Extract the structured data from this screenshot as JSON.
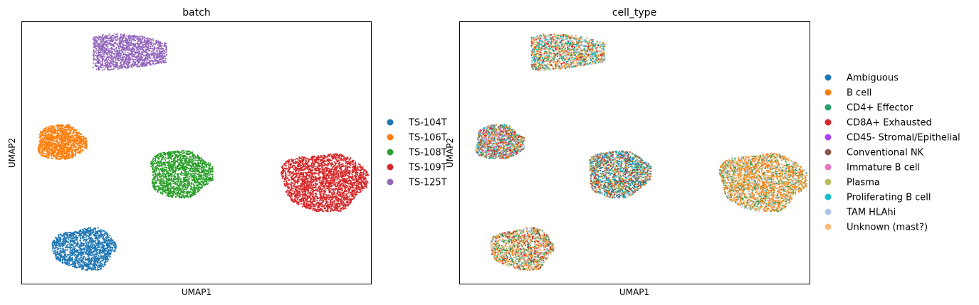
{
  "chart_data": [
    {
      "type": "scatter",
      "title": "batch",
      "xlabel": "UMAP1",
      "ylabel": "UMAP2",
      "xlim": [
        0,
        10
      ],
      "ylim": [
        0,
        10
      ],
      "grid": false,
      "ticks": "hidden",
      "legend_placement": "right",
      "legend": [
        {
          "label": "TS-104T",
          "color": "#1f77b4"
        },
        {
          "label": "TS-106T",
          "color": "#ff7f0e"
        },
        {
          "label": "TS-108T",
          "color": "#2ca02c"
        },
        {
          "label": "TS-109T",
          "color": "#d62728"
        },
        {
          "label": "TS-125T",
          "color": "#9467bd"
        }
      ],
      "clusters": [
        {
          "name": "TS-125T",
          "center": [
            3.1,
            8.8
          ],
          "rx": 1.05,
          "ry": 0.72,
          "shape": "wedge",
          "points": 1500,
          "colors": [
            "#9467bd"
          ]
        },
        {
          "name": "TS-106T",
          "center": [
            1.15,
            5.4
          ],
          "rx": 0.72,
          "ry": 0.68,
          "shape": "round",
          "points": 1300,
          "colors": [
            "#ff7f0e"
          ]
        },
        {
          "name": "TS-108T",
          "center": [
            4.55,
            4.2
          ],
          "rx": 0.92,
          "ry": 0.92,
          "shape": "round",
          "points": 1700,
          "colors": [
            "#2ca02c"
          ]
        },
        {
          "name": "TS-109T",
          "center": [
            8.65,
            3.9
          ],
          "rx": 1.25,
          "ry": 1.13,
          "shape": "round",
          "points": 2600,
          "colors": [
            "#d62728"
          ]
        },
        {
          "name": "TS-104T",
          "center": [
            1.8,
            1.35
          ],
          "rx": 0.92,
          "ry": 0.82,
          "shape": "round",
          "points": 1500,
          "colors": [
            "#1f77b4"
          ]
        }
      ]
    },
    {
      "type": "scatter",
      "title": "cell_type",
      "xlabel": "UMAP1",
      "ylabel": "UMAP2",
      "xlim": [
        0,
        10
      ],
      "ylim": [
        0,
        10
      ],
      "grid": false,
      "ticks": "hidden",
      "legend_placement": "right",
      "legend": [
        {
          "label": "Ambiguous",
          "color": "#1f77b4"
        },
        {
          "label": "B cell",
          "color": "#ff7f0e"
        },
        {
          "label": "CD4+ Effector",
          "color": "#279e68"
        },
        {
          "label": "CD8A+ Exhausted",
          "color": "#d62728"
        },
        {
          "label": "CD45- Stromal/Epithelial",
          "color": "#aa40fc"
        },
        {
          "label": "Conventional NK",
          "color": "#8c564b"
        },
        {
          "label": "Immature B cell",
          "color": "#e377c2"
        },
        {
          "label": "Plasma",
          "color": "#b5bd61"
        },
        {
          "label": "Proliferating B cell",
          "color": "#17becf"
        },
        {
          "label": "TAM HLAhi",
          "color": "#aec7e8"
        },
        {
          "label": "Unknown (mast?)",
          "color": "#ffbb78"
        }
      ],
      "clusters": [
        {
          "name": "upper cluster",
          "center": [
            3.1,
            8.8
          ],
          "rx": 1.05,
          "ry": 0.72,
          "shape": "wedge",
          "points": 1500,
          "colors": [
            "#ff7f0e",
            "#b5bd61",
            "#279e68",
            "#aec7e8",
            "#d62728",
            "#17becf",
            "#ffbb78"
          ]
        },
        {
          "name": "left cluster",
          "center": [
            1.15,
            5.4
          ],
          "rx": 0.72,
          "ry": 0.68,
          "shape": "round",
          "points": 1300,
          "colors": [
            "#ff7f0e",
            "#279e68",
            "#aec7e8",
            "#b5bd61",
            "#17becf",
            "#e377c2",
            "#d62728",
            "#8c564b"
          ]
        },
        {
          "name": "middle cluster",
          "center": [
            4.55,
            4.2
          ],
          "rx": 0.92,
          "ry": 0.92,
          "shape": "round",
          "points": 1700,
          "colors": [
            "#279e68",
            "#ff7f0e",
            "#d62728",
            "#aec7e8",
            "#8c564b",
            "#b5bd61",
            "#17becf",
            "#1f77b4"
          ]
        },
        {
          "name": "right cluster",
          "center": [
            8.65,
            3.9
          ],
          "rx": 1.25,
          "ry": 1.13,
          "shape": "round",
          "points": 2600,
          "colors": [
            "#ff7f0e",
            "#ff7f0e",
            "#ff7f0e",
            "#aec7e8",
            "#279e68",
            "#b5bd61",
            "#ffbb78"
          ]
        },
        {
          "name": "bottom cluster",
          "center": [
            1.8,
            1.35
          ],
          "rx": 0.92,
          "ry": 0.82,
          "shape": "round",
          "points": 1500,
          "colors": [
            "#ff7f0e",
            "#b5bd61",
            "#279e68",
            "#aec7e8",
            "#d62728",
            "#ffbb78"
          ]
        }
      ]
    }
  ]
}
